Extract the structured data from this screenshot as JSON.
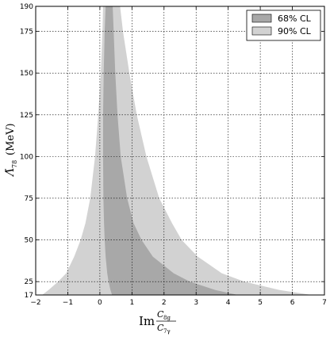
{
  "chart_data": {
    "type": "area",
    "title": "",
    "xlabel": {
      "main": "Im",
      "frac_num": "C",
      "frac_num_sub": "8g",
      "frac_den": "C",
      "frac_den_sub": "7γ"
    },
    "ylabel": {
      "symbol": "Λ̄",
      "subscript": "78",
      "unit": "(MeV)"
    },
    "xlim": [
      -2,
      7
    ],
    "ylim": [
      17,
      190
    ],
    "xticks": [
      -2,
      -1,
      0,
      1,
      2,
      3,
      4,
      5,
      6,
      7
    ],
    "yticks": [
      17,
      25,
      50,
      75,
      100,
      125,
      150,
      175,
      190
    ],
    "grid": true,
    "legend_position": "top-right",
    "series": [
      {
        "name": "90% CL",
        "color": "#d2d2d2",
        "y": [
          17,
          20,
          25,
          30,
          40,
          50,
          60,
          75,
          100,
          125,
          150,
          175,
          190
        ],
        "x_low": [
          -1.8,
          -1.6,
          -1.3,
          -1.05,
          -0.8,
          -0.6,
          -0.45,
          -0.3,
          -0.15,
          -0.05,
          0.03,
          0.08,
          0.1
        ],
        "x_high": [
          6.6,
          5.6,
          4.5,
          3.8,
          3.05,
          2.55,
          2.25,
          1.85,
          1.45,
          1.15,
          0.92,
          0.72,
          0.63
        ]
      },
      {
        "name": "68% CL",
        "color": "#a8a8a8",
        "y": [
          17,
          20,
          25,
          30,
          40,
          50,
          60,
          75,
          100,
          125,
          150,
          175,
          190
        ],
        "x_low": [
          0.38,
          0.33,
          0.27,
          0.23,
          0.18,
          0.15,
          0.13,
          0.11,
          0.1,
          0.1,
          0.12,
          0.15,
          0.18
        ],
        "x_high": [
          4.3,
          3.6,
          2.8,
          2.3,
          1.65,
          1.3,
          1.05,
          0.85,
          0.65,
          0.55,
          0.48,
          0.43,
          0.4
        ]
      }
    ]
  }
}
